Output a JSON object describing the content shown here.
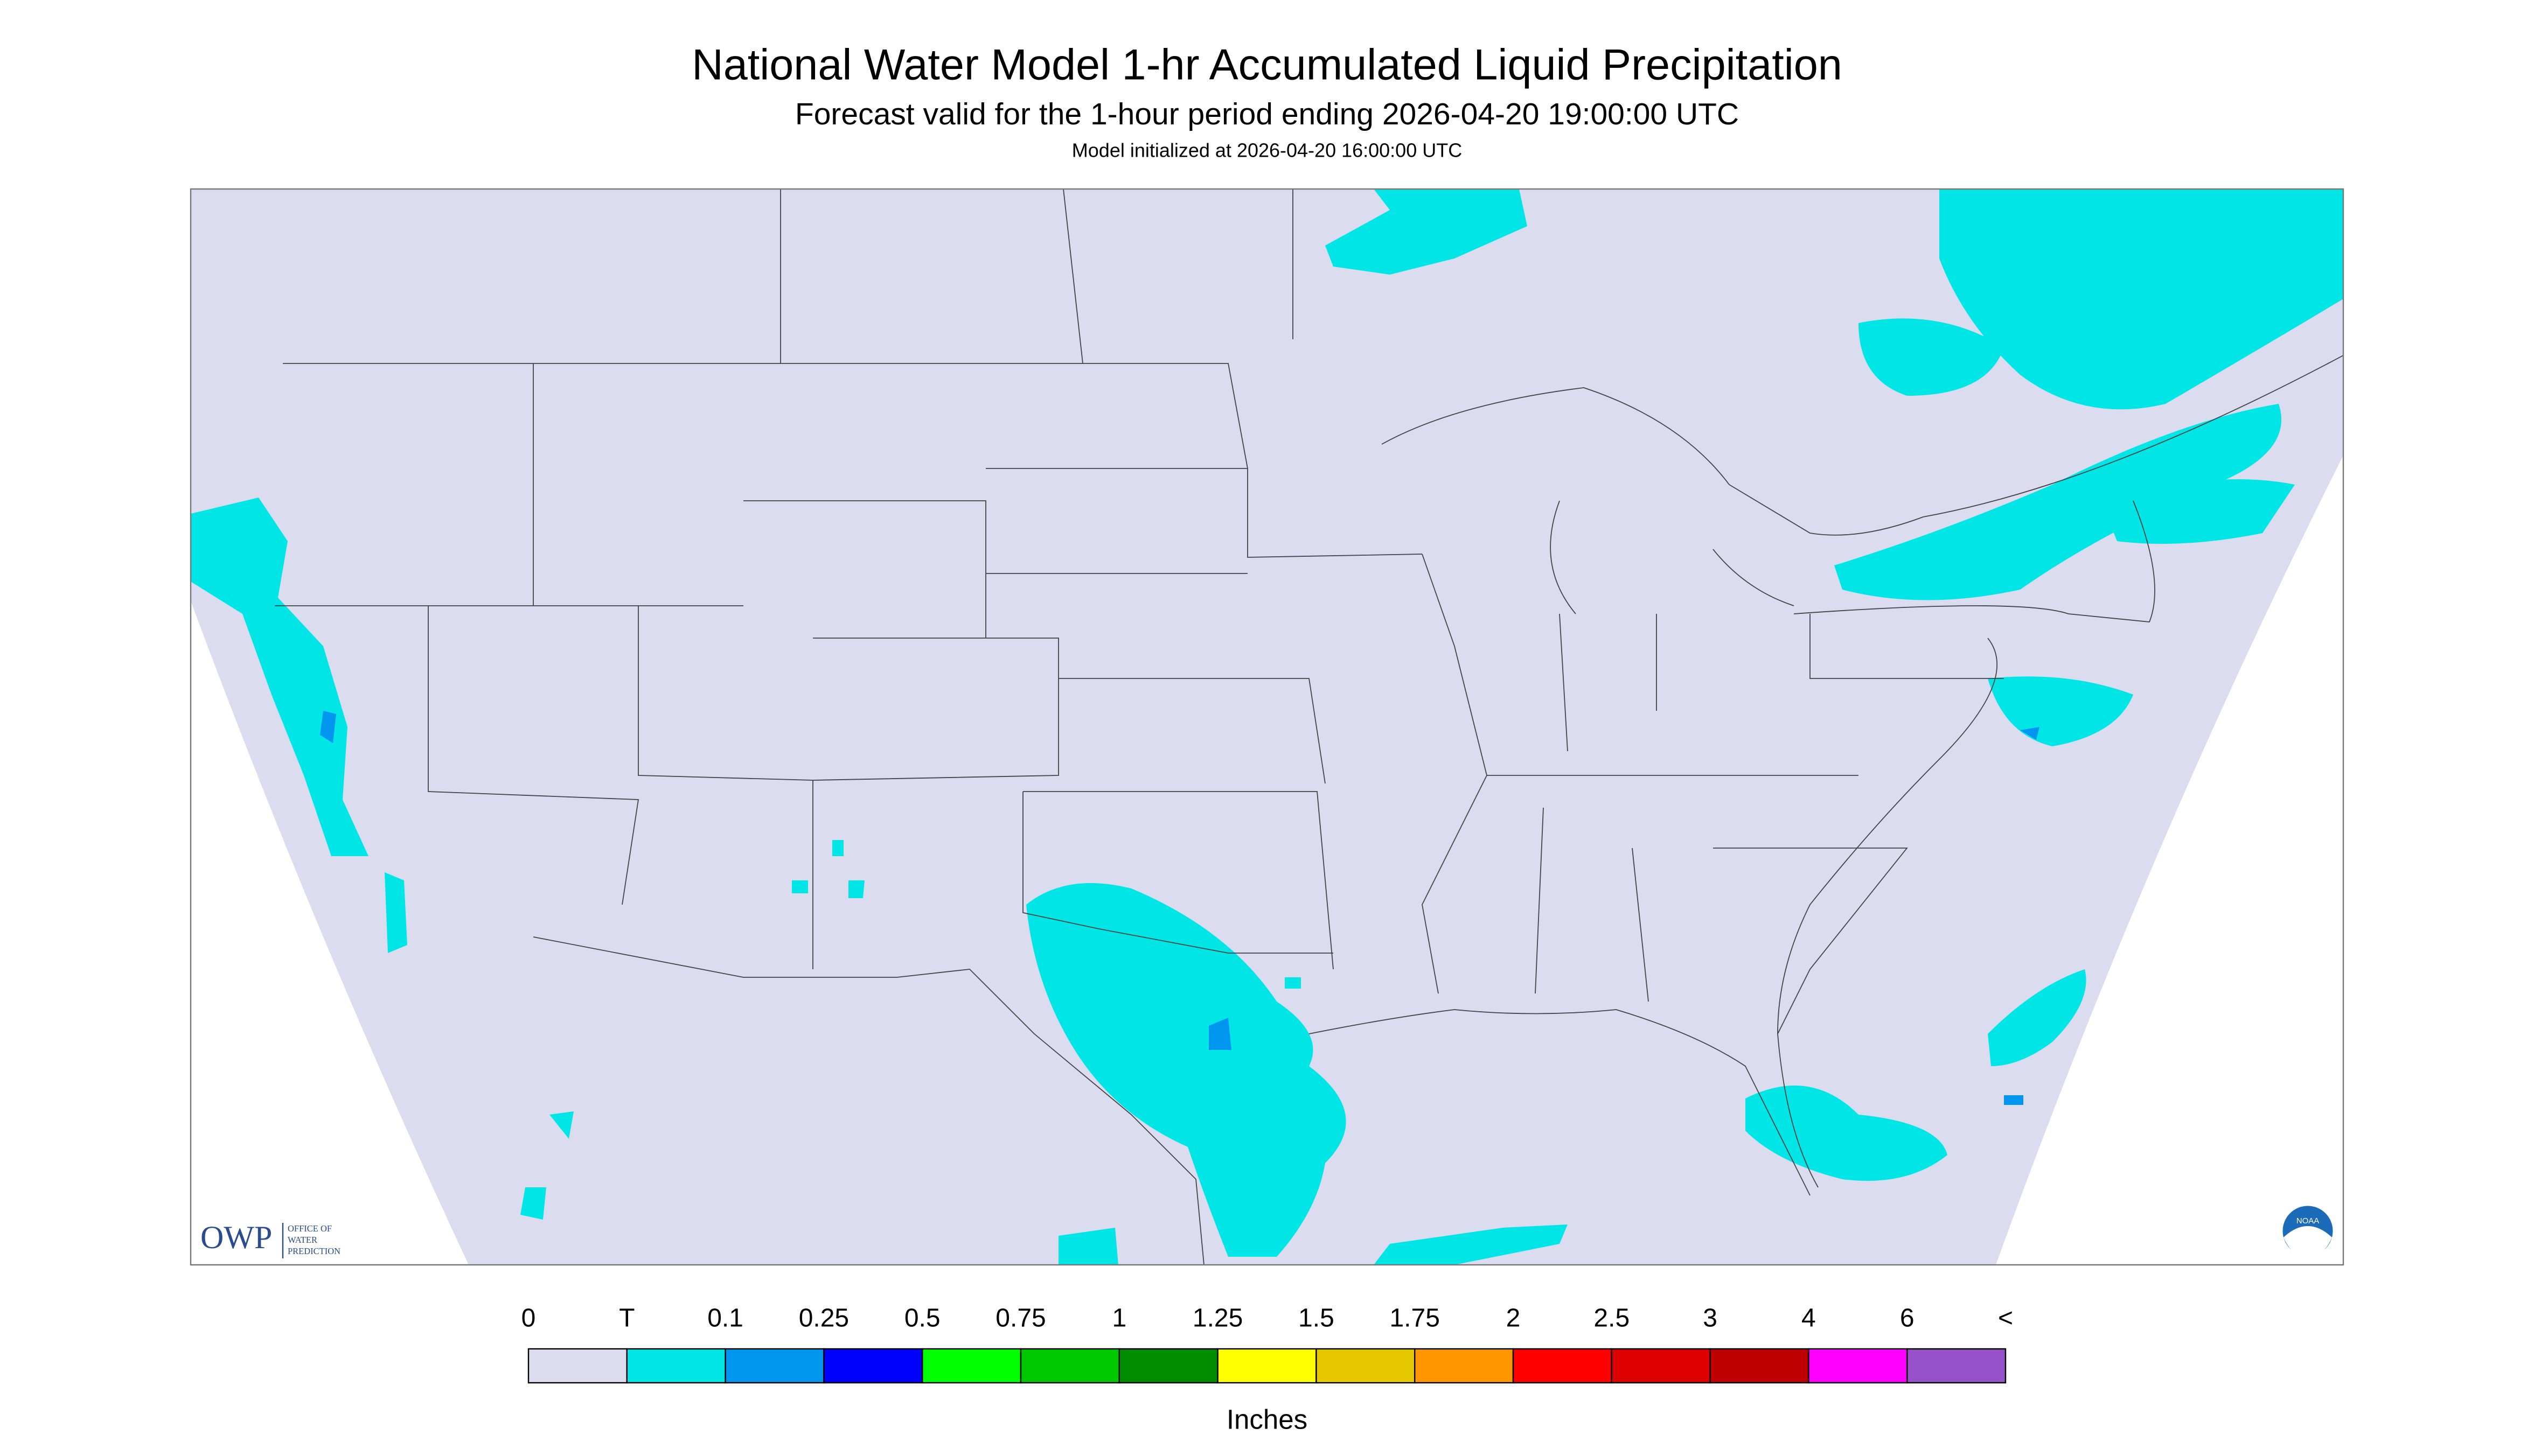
{
  "header": {
    "title": "National Water Model 1-hr Accumulated Liquid Precipitation",
    "subtitle": "Forecast valid for the 1-hour period ending 2026-04-20 19:00:00 UTC",
    "initialized": "Model initialized at 2026-04-20 16:00:00 UTC"
  },
  "map": {
    "background": "#dcdcf0",
    "precip_color": "#00e6e6"
  },
  "legend": {
    "labels": [
      "0",
      "T",
      "0.1",
      "0.25",
      "0.5",
      "0.75",
      "1",
      "1.25",
      "1.5",
      "1.75",
      "2",
      "2.5",
      "3",
      "4",
      "6",
      "<"
    ],
    "colors": [
      "#dcdcf0",
      "#00e6e6",
      "#0096f0",
      "#0000ff",
      "#00ff00",
      "#00c800",
      "#008c00",
      "#ffff00",
      "#e6c800",
      "#ff9600",
      "#ff0000",
      "#dc0000",
      "#be0000",
      "#ff00ff",
      "#9650c8"
    ],
    "unit": "Inches"
  },
  "logos": {
    "owp": "OWP",
    "owp_lines": [
      "OFFICE OF",
      "WATER",
      "PREDICTION"
    ],
    "noaa": "NOAA"
  }
}
